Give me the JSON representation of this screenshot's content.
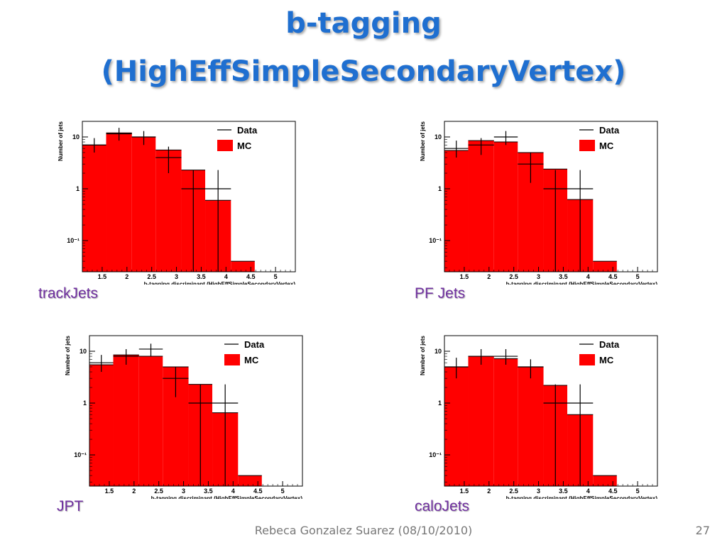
{
  "slide": {
    "title_line1": "b-tagging",
    "title_line2": "(HighEffSimpleSecondaryVertex)",
    "footer": "Rebeca Gonzalez Suarez  (08/10/2010)",
    "page_number": "27"
  },
  "colors": {
    "title": "#1f6fd0",
    "caption": "#7030a0",
    "mc_fill": "#ff0000"
  },
  "chart_data": [
    {
      "type": "bar",
      "caption": "trackJets",
      "xlabel": "b-tagging discriminant (HighEffSimpleSecondaryVertex)",
      "ylabel": "Number of jets",
      "log_y": true,
      "xlim": [
        1.1,
        5.4
      ],
      "ylim": [
        0.025,
        20
      ],
      "x_ticks": [
        "1.5",
        "2",
        "2.5",
        "3",
        "3.5",
        "4",
        "4.5",
        "5"
      ],
      "y_ticks": [
        "10",
        "1",
        "10⁻¹"
      ],
      "legend": {
        "position": "top-right",
        "entries": [
          "Data",
          "MC"
        ]
      },
      "mc": {
        "name": "MC",
        "edges": [
          1.1,
          1.58,
          2.1,
          2.58,
          3.1,
          3.58,
          4.1,
          4.58,
          5.4
        ],
        "values": [
          7.0,
          12.0,
          10.0,
          5.6,
          2.3,
          0.6,
          0.04,
          0
        ]
      },
      "data": {
        "name": "Data",
        "x": [
          1.34,
          1.84,
          2.34,
          2.84,
          3.34,
          3.84,
          4.34
        ],
        "xerr": [
          0.24,
          0.26,
          0.24,
          0.26,
          0.24,
          0.26,
          0.24
        ],
        "y": [
          7.0,
          11.5,
          10.0,
          4.0,
          1.0,
          1.0,
          0
        ],
        "yerr_lo": [
          5.0,
          8.5,
          7.0,
          2.0,
          0.01,
          0.01,
          0
        ],
        "yerr_hi": [
          9.5,
          15.0,
          13.0,
          6.5,
          2.3,
          2.3,
          0
        ]
      }
    },
    {
      "type": "bar",
      "caption": "PF Jets",
      "xlabel": "b-tagging discriminant (HighEffSimpleSecondaryVertex)",
      "ylabel": "Number of jets",
      "log_y": true,
      "xlim": [
        1.1,
        5.4
      ],
      "ylim": [
        0.025,
        20
      ],
      "x_ticks": [
        "1.5",
        "2",
        "2.5",
        "3",
        "3.5",
        "4",
        "4.5",
        "5"
      ],
      "y_ticks": [
        "10",
        "1",
        "10⁻¹"
      ],
      "legend": {
        "position": "top-right",
        "entries": [
          "Data",
          "MC"
        ]
      },
      "mc": {
        "name": "MC",
        "edges": [
          1.1,
          1.58,
          2.1,
          2.58,
          3.1,
          3.58,
          4.1,
          4.58,
          5.4
        ],
        "values": [
          5.5,
          8.5,
          8.0,
          5.0,
          2.4,
          0.62,
          0.04,
          0
        ]
      },
      "data": {
        "name": "Data",
        "x": [
          1.34,
          1.84,
          2.34,
          2.84,
          3.34,
          3.84,
          4.34
        ],
        "xerr": [
          0.24,
          0.26,
          0.24,
          0.26,
          0.24,
          0.26,
          0.24
        ],
        "y": [
          6.0,
          7.0,
          10.0,
          3.0,
          1.0,
          1.0,
          0
        ],
        "yerr_lo": [
          4.0,
          4.5,
          7.0,
          1.3,
          0.01,
          0.01,
          0
        ],
        "yerr_hi": [
          8.5,
          9.5,
          13.0,
          5.0,
          2.3,
          2.3,
          0
        ]
      }
    },
    {
      "type": "bar",
      "caption": "JPT",
      "xlabel": "b-tagging discriminant (HighEffSimpleSecondaryVertex)",
      "ylabel": "Number of jets",
      "log_y": true,
      "xlim": [
        1.1,
        5.4
      ],
      "ylim": [
        0.025,
        20
      ],
      "x_ticks": [
        "1.5",
        "2",
        "2.5",
        "3",
        "3.5",
        "4",
        "4.5",
        "5"
      ],
      "y_ticks": [
        "10",
        "1",
        "10⁻¹"
      ],
      "legend": {
        "position": "top-right",
        "entries": [
          "Data",
          "MC"
        ]
      },
      "mc": {
        "name": "MC",
        "edges": [
          1.1,
          1.58,
          2.1,
          2.58,
          3.1,
          3.58,
          4.1,
          4.58,
          5.4
        ],
        "values": [
          5.5,
          8.5,
          8.0,
          5.0,
          2.3,
          0.65,
          0.04,
          0
        ]
      },
      "data": {
        "name": "Data",
        "x": [
          1.34,
          1.84,
          2.34,
          2.84,
          3.34,
          3.84,
          4.34
        ],
        "xerr": [
          0.24,
          0.26,
          0.24,
          0.26,
          0.24,
          0.26,
          0.24
        ],
        "y": [
          6.0,
          8.0,
          11.0,
          3.0,
          1.0,
          1.0,
          0
        ],
        "yerr_lo": [
          4.0,
          5.5,
          8.0,
          1.3,
          0.01,
          0.01,
          0
        ],
        "yerr_hi": [
          8.5,
          11.0,
          14.0,
          5.0,
          2.3,
          2.3,
          0
        ]
      }
    },
    {
      "type": "bar",
      "caption": "caloJets",
      "xlabel": "b-tagging discriminant (HighEffSimpleSecondaryVertex)",
      "ylabel": "Number of jets",
      "log_y": true,
      "xlim": [
        1.1,
        5.4
      ],
      "ylim": [
        0.025,
        20
      ],
      "x_ticks": [
        "1.5",
        "2",
        "2.5",
        "3",
        "3.5",
        "4",
        "4.5",
        "5"
      ],
      "y_ticks": [
        "10",
        "1",
        "10⁻¹"
      ],
      "legend": {
        "position": "top-right",
        "entries": [
          "Data",
          "MC"
        ]
      },
      "mc": {
        "name": "MC",
        "edges": [
          1.1,
          1.58,
          2.1,
          2.58,
          3.1,
          3.58,
          4.1,
          4.58,
          5.4
        ],
        "values": [
          5.0,
          8.0,
          7.2,
          5.0,
          2.2,
          0.6,
          0.04,
          0
        ]
      },
      "data": {
        "name": "Data",
        "x": [
          1.34,
          1.84,
          2.34,
          2.84,
          3.34,
          3.84,
          4.34
        ],
        "xerr": [
          0.24,
          0.26,
          0.24,
          0.26,
          0.24,
          0.26,
          0.24
        ],
        "y": [
          5.0,
          8.0,
          8.0,
          5.0,
          1.0,
          1.0,
          0
        ],
        "yerr_lo": [
          3.0,
          5.5,
          5.5,
          3.0,
          0.01,
          0.01,
          0
        ],
        "yerr_hi": [
          7.5,
          11.0,
          11.0,
          7.0,
          2.3,
          2.3,
          0
        ]
      }
    }
  ]
}
